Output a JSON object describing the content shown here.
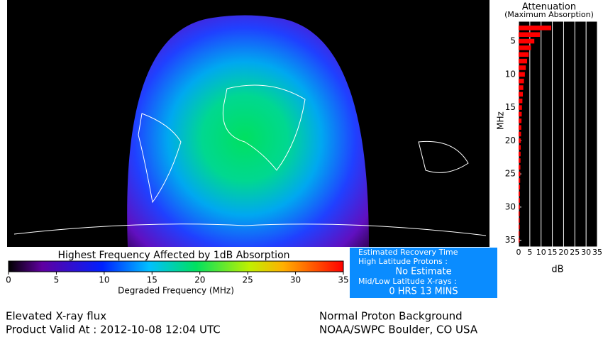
{
  "map": {
    "colorbar": {
      "title": "Highest Frequency Affected by 1dB Absorption",
      "xlabel": "Degraded Frequency (MHz)",
      "xlim": [
        0,
        35
      ],
      "xticks": [
        0,
        5,
        10,
        15,
        20,
        25,
        30,
        35
      ]
    }
  },
  "chart_data": {
    "type": "bar",
    "orientation": "horizontal",
    "title": "Attenuation",
    "subtitle": "(Maximum Absorption)",
    "ylabel": "MHz",
    "xlabel": "dB",
    "x": [
      3,
      4,
      5,
      6,
      7,
      8,
      9,
      10,
      11,
      12,
      13,
      14,
      15,
      16,
      17,
      18,
      19,
      20,
      21,
      22,
      23,
      24,
      25,
      26,
      27,
      28,
      29,
      30,
      31,
      32,
      33,
      34,
      35
    ],
    "values": [
      14.5,
      9.5,
      7,
      5.5,
      4.5,
      3.8,
      3.2,
      2.8,
      2.4,
      2.1,
      1.9,
      1.7,
      1.5,
      1.4,
      1.3,
      1.2,
      1.1,
      1.0,
      0.95,
      0.9,
      0.85,
      0.8,
      0.75,
      0.7,
      0.65,
      0.6,
      0.6,
      0.55,
      0.5,
      0.5,
      0.5,
      0.45,
      0.45
    ],
    "color": "#ff0000",
    "xlim": [
      0,
      35
    ],
    "xticks": [
      0,
      5,
      10,
      15,
      20,
      25,
      30,
      35
    ],
    "ylim": [
      2,
      36
    ],
    "yticks": [
      5,
      10,
      15,
      20,
      25,
      30,
      35
    ],
    "grid": true
  },
  "recovery": {
    "title": "Estimated Recovery Time",
    "high_label": "High Latitude Protons :",
    "high_value": "No Estimate",
    "low_label": "Mid/Low Latitude X-rays :",
    "low_value": "0 HRS 13 MINS"
  },
  "footer": {
    "status": "Elevated X-ray flux",
    "valid": "Product Valid At : 2012-10-08 12:04 UTC",
    "proton": "Normal Proton Background",
    "credit": "NOAA/SWPC Boulder, CO USA"
  }
}
